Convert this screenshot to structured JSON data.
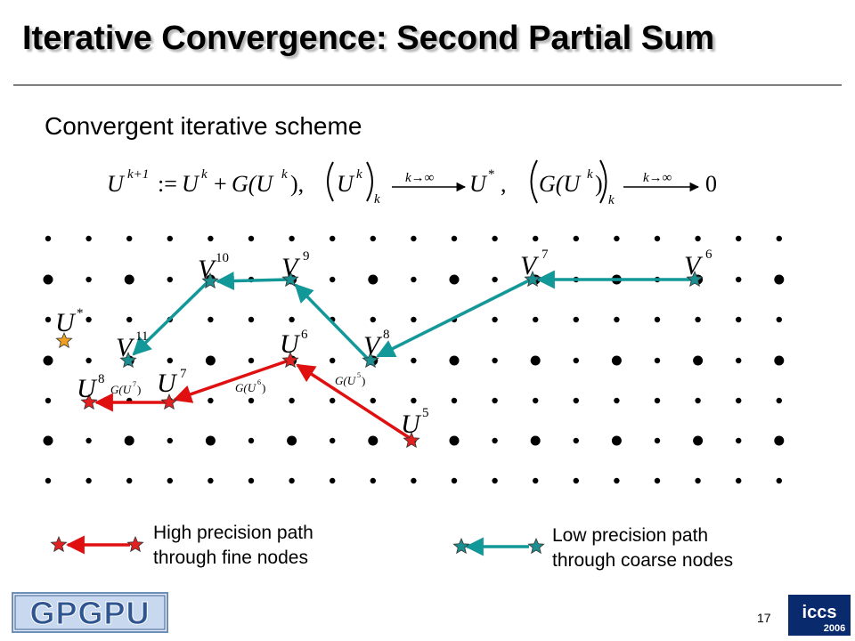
{
  "title": "Iterative Convergence: Second Partial Sum",
  "subtitle": "Convergent iterative scheme",
  "formula": {
    "lhs": "U",
    "lhs_sup": "k+1",
    "assign": ":=",
    "rhs1": "U",
    "rhs1_sup": "k",
    "plus": "+",
    "rhs2": "G(U",
    "rhs2_sup": "k",
    "rhs2_close": "),",
    "seq1": "U",
    "seq1_sup": "k",
    "seq_sub": "k",
    "limit": "k→∞",
    "target1": "U",
    "target1_sup": "*",
    "comma": ",",
    "seq2": "G(U",
    "seq2_sup": "k",
    "seq2_close": ")",
    "target2": "0"
  },
  "labels": {
    "ustar": {
      "base": "U",
      "sup": "*"
    },
    "u8": {
      "base": "U",
      "sup": "8"
    },
    "u7": {
      "base": "U",
      "sup": "7"
    },
    "u6": {
      "base": "U",
      "sup": "6"
    },
    "u5": {
      "base": "U",
      "sup": "5"
    },
    "v11": {
      "base": "V",
      "sup": "11"
    },
    "v10": {
      "base": "V",
      "sup": "10"
    },
    "v9": {
      "base": "V",
      "sup": "9"
    },
    "v8": {
      "base": "V",
      "sup": "8"
    },
    "v7": {
      "base": "V",
      "sup": "7"
    },
    "v6": {
      "base": "V",
      "sup": "6"
    },
    "g7": {
      "base": "G(U",
      "sup": "7",
      "close": ")"
    },
    "g6": {
      "base": "G(U",
      "sup": "6",
      "close": ")"
    },
    "g5": {
      "base": "G(U",
      "sup": "5",
      "close": ")"
    }
  },
  "legend": {
    "high": "High precision path\nthrough fine nodes",
    "low": "Low precision path\nthrough coarse nodes",
    "high_color": "#e01010",
    "low_color": "#13989a"
  },
  "colors": {
    "fine_star": "#e32020",
    "coarse_star": "#1b8f8f",
    "target_star": "#f0a020",
    "dots": "#000000"
  },
  "page_number": "17",
  "logos": {
    "left": "GPGPU",
    "right_top": "iccs",
    "right_bottom": "2006"
  }
}
